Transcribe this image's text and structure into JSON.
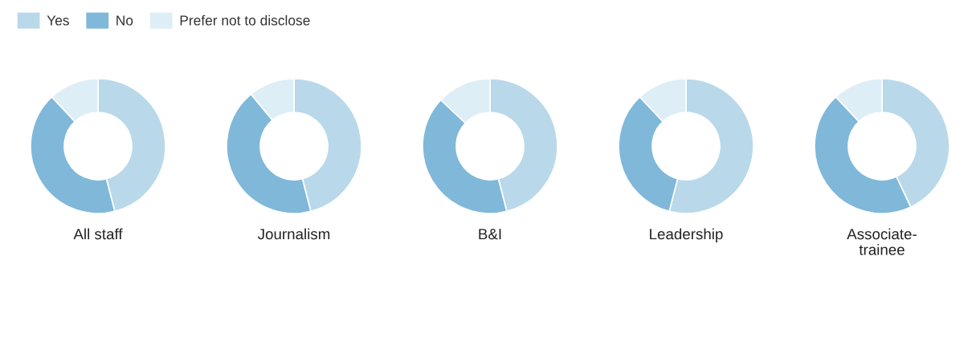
{
  "chart_data": [
    {
      "type": "donut",
      "title": "All staff",
      "categories": [
        "Yes",
        "No",
        "Prefer not to disclose"
      ],
      "values": [
        46,
        42,
        12
      ],
      "colors": [
        "#b9d9ea",
        "#80b8da",
        "#ddeef6"
      ],
      "legend": "top right"
    },
    {
      "type": "donut",
      "title": "Journalism",
      "categories": [
        null,
        null,
        null
      ],
      "values": [
        46,
        43,
        11
      ],
      "colors": [
        "#b9d9ea",
        "#80b8da",
        "#ddeef6"
      ]
    },
    {
      "type": "donut",
      "title": "B&I",
      "categories": [
        null,
        null,
        null
      ],
      "values": [
        46,
        41,
        13
      ],
      "colors": [
        "#b9d9ea",
        "#80b8da",
        "#ddeef6"
      ]
    },
    {
      "type": "donut",
      "title": "Leadership",
      "categories": [
        null,
        null,
        null
      ],
      "values": [
        54,
        34,
        12
      ],
      "colors": [
        "#b9d9ea",
        "#80b8da",
        "#ddeef6"
      ]
    },
    {
      "type": "donut",
      "title": "Associate-\ntrainee",
      "categories": [
        null,
        null,
        null
      ],
      "values": [
        43,
        45,
        12
      ],
      "colors": [
        "#b9d9ea",
        "#80b8da",
        "#ddeef6"
      ]
    }
  ]
}
